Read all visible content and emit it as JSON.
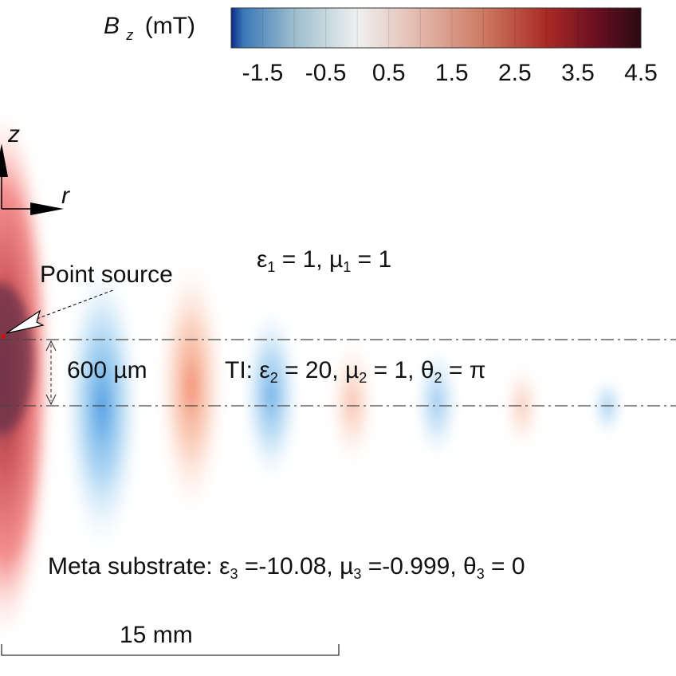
{
  "colorbar": {
    "label_symbol": "B",
    "label_subscript": "z",
    "label_unit": "(mT)",
    "ticks": [
      "-1.5",
      "-0.5",
      "0.5",
      "1.5",
      "2.5",
      "3.5",
      "4.5"
    ],
    "range": [
      -2,
      4.5
    ],
    "stops": [
      {
        "value": -2.0,
        "color": "#0a2a8a"
      },
      {
        "value": -1.8,
        "color": "#3a78b8"
      },
      {
        "value": -1.0,
        "color": "#9bbccc"
      },
      {
        "value": 0.0,
        "color": "#f0f0f0"
      },
      {
        "value": 1.0,
        "color": "#e2b8ab"
      },
      {
        "value": 2.0,
        "color": "#cc7860"
      },
      {
        "value": 3.0,
        "color": "#aa2a25"
      },
      {
        "value": 3.8,
        "color": "#6a0f22"
      },
      {
        "value": 4.5,
        "color": "#2a0a12"
      }
    ]
  },
  "axes": {
    "z_label": "z",
    "r_label": "r"
  },
  "labels": {
    "point_source": "Point source",
    "thickness": "600 µm",
    "scale": "15 mm"
  },
  "regions": {
    "air": {
      "eps": "ε",
      "eps_sub": "1",
      "eps_val": " = 1, ",
      "mu": "µ",
      "mu_sub": "1",
      "mu_val": " = 1"
    },
    "ti": {
      "prefix": "TI: ",
      "eps": "ε",
      "eps_sub": "2",
      "eps_val": " = 20, ",
      "mu": "µ",
      "mu_sub": "2",
      "mu_val": " = 1, ",
      "theta": "θ",
      "theta_sub": "2",
      "theta_val": " = π"
    },
    "substrate": {
      "prefix": "Meta substrate: ",
      "eps": "ε",
      "eps_sub": "3",
      "eps_val": " =-10.08, ",
      "mu": "µ",
      "mu_sub": "3",
      "mu_val": " =-0.999, ",
      "theta": "θ",
      "theta_sub": "3",
      "theta_val": " = 0"
    }
  },
  "field_blobs": [
    {
      "sign": "positive",
      "value": 4.5
    },
    {
      "sign": "negative",
      "value": -1.0
    },
    {
      "sign": "positive",
      "value": 1.0
    },
    {
      "sign": "negative",
      "value": -0.7
    },
    {
      "sign": "positive",
      "value": 0.4
    },
    {
      "sign": "negative",
      "value": -0.4
    },
    {
      "sign": "positive",
      "value": 0.3
    },
    {
      "sign": "negative",
      "value": -0.25
    }
  ]
}
